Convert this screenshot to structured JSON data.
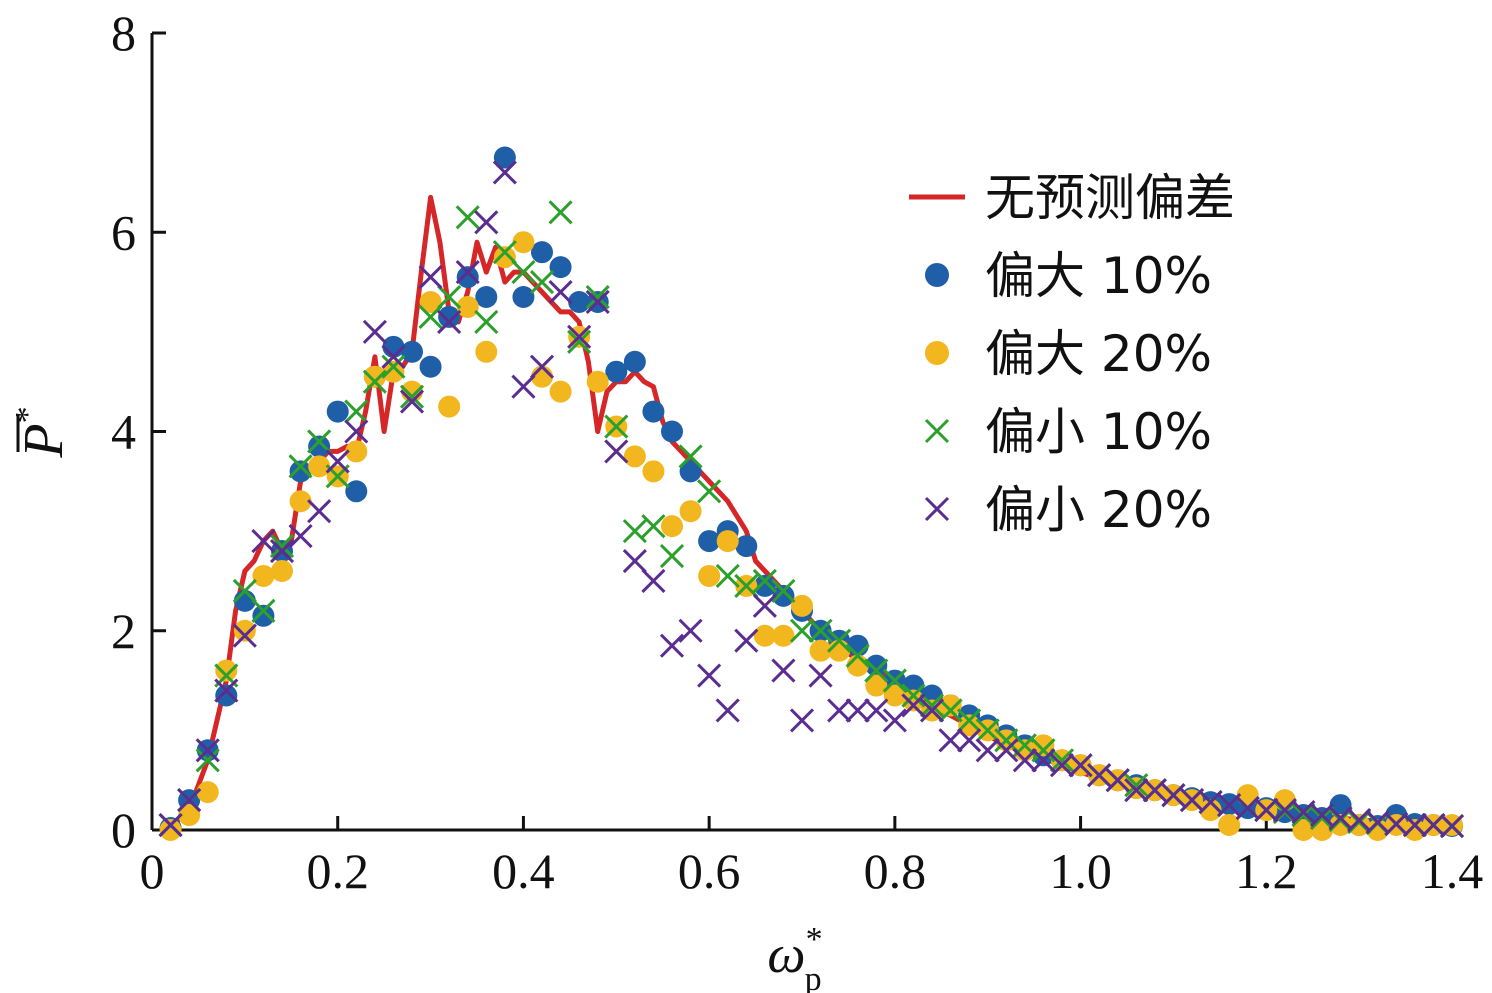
{
  "chart_data": {
    "type": "scatter",
    "title": "",
    "xlabel": "ω",
    "xlabel_sub": "p",
    "xlabel_sup": "*",
    "ylabel": "P",
    "ylabel_sup": "*",
    "xlim": [
      0,
      1.4
    ],
    "ylim": [
      0,
      8
    ],
    "x_ticks": [
      0,
      0.2,
      0.4,
      0.6,
      0.8,
      1.0,
      1.2,
      1.4
    ],
    "x_tick_labels": [
      "0",
      "0.2",
      "0.4",
      "0.6",
      "0.8",
      "1.0",
      "1.2",
      "1.4"
    ],
    "y_ticks": [
      0,
      2,
      4,
      6,
      8
    ],
    "y_tick_labels": [
      "0",
      "2",
      "4",
      "6",
      "8"
    ],
    "grid": false,
    "legend_position": "top-right",
    "series": [
      {
        "name": "无预测偏差",
        "kind": "line",
        "color": "#d62728",
        "x": [
          0.02,
          0.04,
          0.06,
          0.08,
          0.09,
          0.1,
          0.11,
          0.12,
          0.13,
          0.14,
          0.15,
          0.16,
          0.17,
          0.18,
          0.19,
          0.2,
          0.21,
          0.22,
          0.23,
          0.24,
          0.25,
          0.26,
          0.27,
          0.28,
          0.29,
          0.3,
          0.31,
          0.32,
          0.33,
          0.34,
          0.35,
          0.36,
          0.37,
          0.38,
          0.39,
          0.4,
          0.41,
          0.42,
          0.43,
          0.44,
          0.45,
          0.46,
          0.47,
          0.48,
          0.49,
          0.5,
          0.51,
          0.52,
          0.53,
          0.54,
          0.55,
          0.56,
          0.57,
          0.58,
          0.6,
          0.62,
          0.64,
          0.65,
          0.66,
          0.68,
          0.7,
          0.72,
          0.74,
          0.76,
          0.78,
          0.8,
          0.82,
          0.84,
          0.86,
          0.88,
          0.9,
          0.92,
          0.94,
          0.96,
          0.98,
          1.0,
          1.02,
          1.04,
          1.06,
          1.08,
          1.1,
          1.12,
          1.14,
          1.16,
          1.18,
          1.2,
          1.22,
          1.24,
          1.26,
          1.28,
          1.3,
          1.32,
          1.34,
          1.36,
          1.38,
          1.4
        ],
        "y": [
          0.03,
          0.2,
          0.7,
          1.5,
          2.2,
          2.6,
          2.7,
          2.9,
          3.0,
          2.8,
          2.9,
          3.5,
          3.6,
          3.7,
          3.8,
          3.8,
          3.85,
          3.8,
          4.2,
          4.75,
          4.0,
          4.6,
          4.65,
          4.8,
          5.6,
          6.35,
          5.9,
          5.2,
          5.1,
          5.4,
          5.9,
          5.6,
          5.85,
          5.5,
          5.6,
          5.6,
          5.5,
          5.4,
          5.3,
          5.2,
          5.2,
          5.1,
          4.7,
          4.0,
          4.4,
          4.5,
          4.5,
          4.6,
          4.5,
          4.45,
          4.1,
          3.9,
          3.8,
          3.7,
          3.5,
          3.3,
          3.0,
          2.7,
          2.6,
          2.4,
          2.2,
          2.0,
          1.85,
          1.7,
          1.6,
          1.5,
          1.35,
          1.25,
          1.15,
          1.05,
          0.95,
          0.85,
          0.78,
          0.72,
          0.65,
          0.58,
          0.52,
          0.46,
          0.41,
          0.37,
          0.33,
          0.29,
          0.26,
          0.23,
          0.21,
          0.19,
          0.17,
          0.15,
          0.13,
          0.12,
          0.1,
          0.09,
          0.08,
          0.07,
          0.06,
          0.05
        ]
      },
      {
        "name": "偏大 10%",
        "kind": "circle",
        "color": "#1f5fa8",
        "x": [
          0.02,
          0.04,
          0.06,
          0.08,
          0.1,
          0.12,
          0.14,
          0.16,
          0.18,
          0.2,
          0.22,
          0.24,
          0.26,
          0.28,
          0.3,
          0.32,
          0.34,
          0.36,
          0.38,
          0.4,
          0.42,
          0.44,
          0.46,
          0.48,
          0.5,
          0.52,
          0.54,
          0.56,
          0.58,
          0.6,
          0.62,
          0.64,
          0.66,
          0.68,
          0.7,
          0.72,
          0.74,
          0.76,
          0.78,
          0.8,
          0.82,
          0.84,
          0.86,
          0.88,
          0.9,
          0.92,
          0.94,
          0.96,
          0.98,
          1.0,
          1.02,
          1.04,
          1.06,
          1.08,
          1.1,
          1.12,
          1.14,
          1.16,
          1.18,
          1.2,
          1.22,
          1.24,
          1.26,
          1.28,
          1.3,
          1.32,
          1.34,
          1.36,
          1.38,
          1.4
        ],
        "y": [
          0.02,
          0.3,
          0.8,
          1.35,
          2.3,
          2.15,
          2.8,
          3.6,
          3.85,
          4.2,
          3.4,
          4.55,
          4.85,
          4.8,
          4.65,
          5.15,
          5.55,
          5.35,
          6.75,
          5.35,
          5.8,
          5.65,
          5.3,
          5.3,
          4.6,
          4.7,
          4.2,
          4.0,
          3.6,
          2.9,
          3.0,
          2.85,
          2.45,
          2.35,
          2.2,
          2.0,
          1.9,
          1.85,
          1.65,
          1.5,
          1.45,
          1.35,
          1.25,
          1.15,
          1.05,
          0.95,
          0.85,
          0.75,
          0.7,
          0.65,
          0.55,
          0.5,
          0.45,
          0.4,
          0.35,
          0.32,
          0.28,
          0.26,
          0.22,
          0.22,
          0.18,
          0.15,
          0.12,
          0.25,
          0.05,
          0.04,
          0.15,
          0.06,
          0.05,
          0.04
        ]
      },
      {
        "name": "偏大 20%",
        "kind": "circle",
        "color": "#f2b61f",
        "x": [
          0.02,
          0.04,
          0.06,
          0.08,
          0.1,
          0.12,
          0.14,
          0.16,
          0.18,
          0.2,
          0.22,
          0.24,
          0.26,
          0.28,
          0.3,
          0.32,
          0.34,
          0.36,
          0.38,
          0.4,
          0.42,
          0.44,
          0.46,
          0.48,
          0.5,
          0.52,
          0.54,
          0.56,
          0.58,
          0.6,
          0.62,
          0.64,
          0.66,
          0.68,
          0.7,
          0.72,
          0.74,
          0.76,
          0.78,
          0.8,
          0.82,
          0.84,
          0.86,
          0.88,
          0.9,
          0.92,
          0.94,
          0.96,
          0.98,
          1.0,
          1.02,
          1.04,
          1.06,
          1.08,
          1.1,
          1.12,
          1.14,
          1.16,
          1.18,
          1.2,
          1.22,
          1.24,
          1.26,
          1.28,
          1.3,
          1.32,
          1.34,
          1.36,
          1.38,
          1.4
        ],
        "y": [
          0.0,
          0.15,
          0.38,
          1.6,
          2.0,
          2.55,
          2.6,
          3.3,
          3.65,
          3.55,
          3.8,
          4.55,
          4.6,
          4.4,
          5.3,
          4.25,
          5.25,
          4.8,
          5.75,
          5.9,
          4.55,
          4.4,
          4.95,
          4.5,
          4.05,
          3.75,
          3.6,
          3.05,
          3.2,
          2.55,
          2.9,
          2.45,
          1.95,
          1.95,
          2.25,
          1.8,
          1.8,
          1.65,
          1.45,
          1.35,
          1.3,
          1.2,
          1.25,
          1.05,
          1.0,
          0.9,
          0.8,
          0.85,
          0.7,
          0.65,
          0.55,
          0.5,
          0.42,
          0.4,
          0.35,
          0.3,
          0.2,
          0.05,
          0.35,
          0.2,
          0.3,
          0.0,
          0.0,
          0.05,
          0.05,
          0.0,
          0.05,
          0.0,
          0.05,
          0.05
        ]
      },
      {
        "name": "偏小 10%",
        "kind": "x",
        "color": "#2ca02c",
        "x": [
          0.02,
          0.04,
          0.06,
          0.08,
          0.1,
          0.12,
          0.14,
          0.16,
          0.18,
          0.2,
          0.22,
          0.24,
          0.26,
          0.28,
          0.3,
          0.32,
          0.34,
          0.36,
          0.38,
          0.4,
          0.42,
          0.44,
          0.46,
          0.48,
          0.5,
          0.52,
          0.54,
          0.56,
          0.58,
          0.6,
          0.62,
          0.64,
          0.66,
          0.68,
          0.7,
          0.72,
          0.74,
          0.76,
          0.78,
          0.8,
          0.82,
          0.84,
          0.86,
          0.88,
          0.9,
          0.92,
          0.94,
          0.96,
          0.98,
          1.0,
          1.02,
          1.04,
          1.06,
          1.08,
          1.1,
          1.12,
          1.14,
          1.16,
          1.18,
          1.2,
          1.22,
          1.24,
          1.26,
          1.28,
          1.3,
          1.32,
          1.34,
          1.36,
          1.38,
          1.4
        ],
        "y": [
          0.05,
          0.3,
          0.7,
          1.55,
          2.4,
          2.2,
          2.85,
          3.65,
          3.9,
          3.55,
          4.2,
          4.5,
          4.65,
          4.35,
          5.15,
          5.35,
          6.15,
          5.1,
          5.8,
          5.6,
          5.5,
          6.2,
          4.9,
          5.35,
          4.05,
          3.0,
          3.05,
          2.75,
          3.75,
          3.4,
          2.55,
          2.45,
          2.5,
          2.4,
          2.0,
          2.0,
          1.9,
          1.75,
          1.6,
          1.5,
          1.35,
          1.25,
          1.2,
          1.1,
          1.0,
          0.9,
          0.85,
          0.8,
          0.7,
          0.65,
          0.55,
          0.5,
          0.45,
          0.4,
          0.35,
          0.3,
          0.28,
          0.25,
          0.22,
          0.2,
          0.18,
          0.15,
          0.12,
          0.1,
          0.08,
          0.07,
          0.06,
          0.05,
          0.05,
          0.04
        ]
      },
      {
        "name": "偏小 20%",
        "kind": "x",
        "color": "#5b2d90",
        "x": [
          0.02,
          0.04,
          0.06,
          0.08,
          0.1,
          0.12,
          0.14,
          0.16,
          0.18,
          0.2,
          0.22,
          0.24,
          0.26,
          0.28,
          0.3,
          0.32,
          0.34,
          0.36,
          0.38,
          0.4,
          0.42,
          0.44,
          0.46,
          0.48,
          0.5,
          0.52,
          0.54,
          0.56,
          0.58,
          0.6,
          0.62,
          0.64,
          0.66,
          0.68,
          0.7,
          0.72,
          0.74,
          0.76,
          0.78,
          0.8,
          0.82,
          0.84,
          0.86,
          0.88,
          0.9,
          0.92,
          0.94,
          0.96,
          0.98,
          1.0,
          1.02,
          1.04,
          1.06,
          1.08,
          1.1,
          1.12,
          1.14,
          1.16,
          1.18,
          1.2,
          1.22,
          1.24,
          1.26,
          1.28,
          1.3,
          1.32,
          1.34,
          1.36,
          1.38,
          1.4
        ],
        "y": [
          0.05,
          0.3,
          0.8,
          1.4,
          1.95,
          2.9,
          2.8,
          2.95,
          3.2,
          3.7,
          4.0,
          5.0,
          4.75,
          4.3,
          5.55,
          5.1,
          5.6,
          6.1,
          6.6,
          4.45,
          4.65,
          5.4,
          4.95,
          5.3,
          3.8,
          2.7,
          2.5,
          1.85,
          2.0,
          1.55,
          1.2,
          1.9,
          2.25,
          1.6,
          1.1,
          1.55,
          1.2,
          1.2,
          1.2,
          1.1,
          1.25,
          1.2,
          0.9,
          0.9,
          0.8,
          0.8,
          0.7,
          0.7,
          0.65,
          0.65,
          0.55,
          0.5,
          0.4,
          0.4,
          0.35,
          0.3,
          0.28,
          0.25,
          0.22,
          0.2,
          0.2,
          0.18,
          0.15,
          0.12,
          0.1,
          0.08,
          0.06,
          0.05,
          0.05,
          0.04
        ]
      }
    ]
  }
}
